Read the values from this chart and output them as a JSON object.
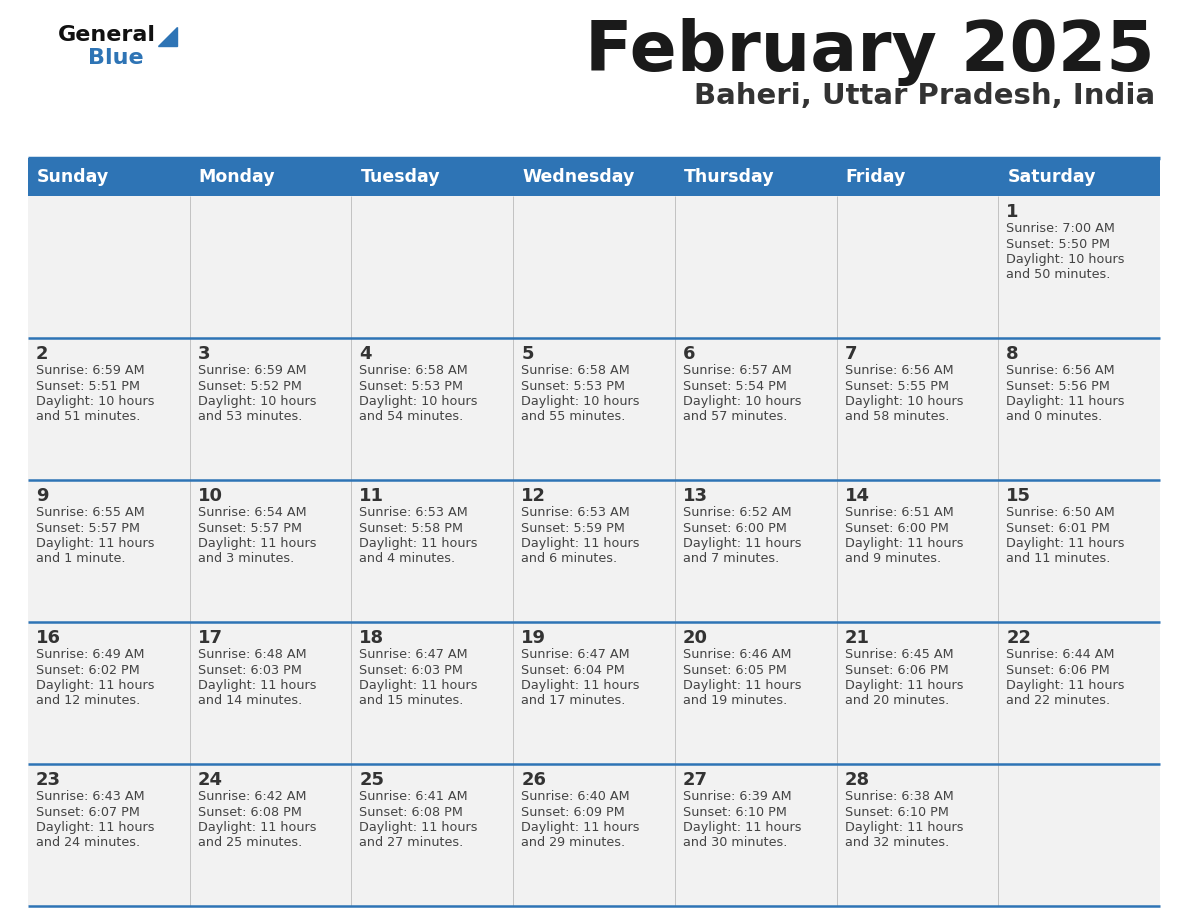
{
  "title": "February 2025",
  "subtitle": "Baheri, Uttar Pradesh, India",
  "header_bg": "#2E74B5",
  "header_text_color": "#FFFFFF",
  "day_names": [
    "Sunday",
    "Monday",
    "Tuesday",
    "Wednesday",
    "Thursday",
    "Friday",
    "Saturday"
  ],
  "row0_bg": "#F2F2F2",
  "row_bg": "#F2F2F2",
  "cell_bg_white": "#FFFFFF",
  "title_color": "#1a1a1a",
  "subtitle_color": "#333333",
  "day_number_color": "#333333",
  "info_color": "#444444",
  "logo_general_color": "#111111",
  "logo_blue_color": "#2E74B5",
  "divider_color": "#2E74B5",
  "calendar": [
    [
      {
        "day": null
      },
      {
        "day": null
      },
      {
        "day": null
      },
      {
        "day": null
      },
      {
        "day": null
      },
      {
        "day": null
      },
      {
        "day": 1,
        "sunrise": "7:00 AM",
        "sunset": "5:50 PM",
        "daylight": "10 hours and 50 minutes"
      }
    ],
    [
      {
        "day": 2,
        "sunrise": "6:59 AM",
        "sunset": "5:51 PM",
        "daylight": "10 hours and 51 minutes"
      },
      {
        "day": 3,
        "sunrise": "6:59 AM",
        "sunset": "5:52 PM",
        "daylight": "10 hours and 53 minutes"
      },
      {
        "day": 4,
        "sunrise": "6:58 AM",
        "sunset": "5:53 PM",
        "daylight": "10 hours and 54 minutes"
      },
      {
        "day": 5,
        "sunrise": "6:58 AM",
        "sunset": "5:53 PM",
        "daylight": "10 hours and 55 minutes"
      },
      {
        "day": 6,
        "sunrise": "6:57 AM",
        "sunset": "5:54 PM",
        "daylight": "10 hours and 57 minutes"
      },
      {
        "day": 7,
        "sunrise": "6:56 AM",
        "sunset": "5:55 PM",
        "daylight": "10 hours and 58 minutes"
      },
      {
        "day": 8,
        "sunrise": "6:56 AM",
        "sunset": "5:56 PM",
        "daylight": "11 hours and 0 minutes"
      }
    ],
    [
      {
        "day": 9,
        "sunrise": "6:55 AM",
        "sunset": "5:57 PM",
        "daylight": "11 hours and 1 minute"
      },
      {
        "day": 10,
        "sunrise": "6:54 AM",
        "sunset": "5:57 PM",
        "daylight": "11 hours and 3 minutes"
      },
      {
        "day": 11,
        "sunrise": "6:53 AM",
        "sunset": "5:58 PM",
        "daylight": "11 hours and 4 minutes"
      },
      {
        "day": 12,
        "sunrise": "6:53 AM",
        "sunset": "5:59 PM",
        "daylight": "11 hours and 6 minutes"
      },
      {
        "day": 13,
        "sunrise": "6:52 AM",
        "sunset": "6:00 PM",
        "daylight": "11 hours and 7 minutes"
      },
      {
        "day": 14,
        "sunrise": "6:51 AM",
        "sunset": "6:00 PM",
        "daylight": "11 hours and 9 minutes"
      },
      {
        "day": 15,
        "sunrise": "6:50 AM",
        "sunset": "6:01 PM",
        "daylight": "11 hours and 11 minutes"
      }
    ],
    [
      {
        "day": 16,
        "sunrise": "6:49 AM",
        "sunset": "6:02 PM",
        "daylight": "11 hours and 12 minutes"
      },
      {
        "day": 17,
        "sunrise": "6:48 AM",
        "sunset": "6:03 PM",
        "daylight": "11 hours and 14 minutes"
      },
      {
        "day": 18,
        "sunrise": "6:47 AM",
        "sunset": "6:03 PM",
        "daylight": "11 hours and 15 minutes"
      },
      {
        "day": 19,
        "sunrise": "6:47 AM",
        "sunset": "6:04 PM",
        "daylight": "11 hours and 17 minutes"
      },
      {
        "day": 20,
        "sunrise": "6:46 AM",
        "sunset": "6:05 PM",
        "daylight": "11 hours and 19 minutes"
      },
      {
        "day": 21,
        "sunrise": "6:45 AM",
        "sunset": "6:06 PM",
        "daylight": "11 hours and 20 minutes"
      },
      {
        "day": 22,
        "sunrise": "6:44 AM",
        "sunset": "6:06 PM",
        "daylight": "11 hours and 22 minutes"
      }
    ],
    [
      {
        "day": 23,
        "sunrise": "6:43 AM",
        "sunset": "6:07 PM",
        "daylight": "11 hours and 24 minutes"
      },
      {
        "day": 24,
        "sunrise": "6:42 AM",
        "sunset": "6:08 PM",
        "daylight": "11 hours and 25 minutes"
      },
      {
        "day": 25,
        "sunrise": "6:41 AM",
        "sunset": "6:08 PM",
        "daylight": "11 hours and 27 minutes"
      },
      {
        "day": 26,
        "sunrise": "6:40 AM",
        "sunset": "6:09 PM",
        "daylight": "11 hours and 29 minutes"
      },
      {
        "day": 27,
        "sunrise": "6:39 AM",
        "sunset": "6:10 PM",
        "daylight": "11 hours and 30 minutes"
      },
      {
        "day": 28,
        "sunrise": "6:38 AM",
        "sunset": "6:10 PM",
        "daylight": "11 hours and 32 minutes"
      },
      {
        "day": null
      }
    ]
  ]
}
